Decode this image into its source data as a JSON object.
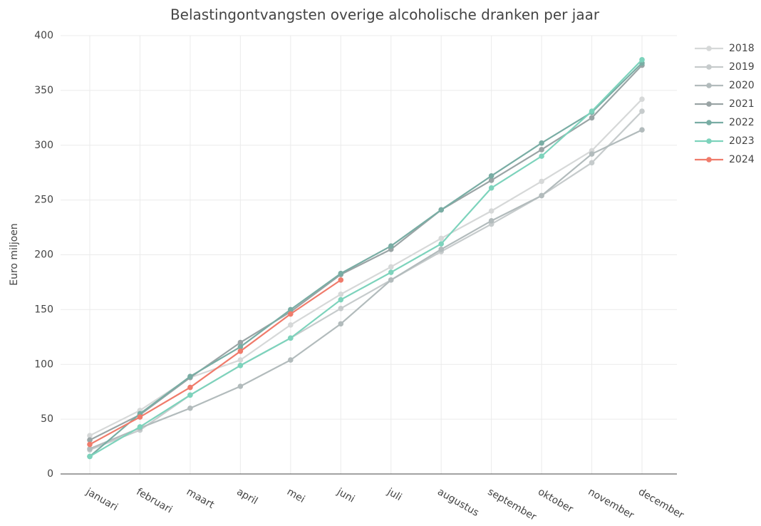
{
  "chart_data": {
    "type": "line",
    "title": "Belastingontvangsten overige alcoholische dranken per jaar",
    "y_label": "Euro miljoen",
    "categories": [
      "januari",
      "februari",
      "maart",
      "april",
      "mei",
      "juni",
      "juli",
      "augustus",
      "september",
      "oktober",
      "november",
      "december"
    ],
    "series": [
      {
        "name": "2018",
        "color": "#d6d8d8",
        "values": [
          35,
          58,
          88,
          104,
          136,
          164,
          189,
          215,
          240,
          267,
          295,
          342
        ]
      },
      {
        "name": "2019",
        "color": "#c6cbcc",
        "values": [
          22,
          40,
          72,
          99,
          124,
          151,
          177,
          203,
          228,
          254,
          284,
          331
        ]
      },
      {
        "name": "2020",
        "color": "#b2bbbc",
        "values": [
          23,
          42,
          60,
          80,
          104,
          137,
          177,
          205,
          231,
          254,
          292,
          314
        ]
      },
      {
        "name": "2021",
        "color": "#9aa4a5",
        "values": [
          31,
          54,
          88,
          120,
          148,
          182,
          205,
          241,
          268,
          296,
          325,
          373
        ]
      },
      {
        "name": "2022",
        "color": "#79ada4",
        "values": [
          16,
          55,
          89,
          116,
          150,
          183,
          208,
          241,
          272,
          302,
          330,
          375
        ]
      },
      {
        "name": "2023",
        "color": "#7dd3bc",
        "values": [
          16,
          43,
          72,
          99,
          124,
          159,
          184,
          210,
          261,
          290,
          331,
          378
        ]
      },
      {
        "name": "2024",
        "color": "#f07b6b",
        "values": [
          27,
          52,
          79,
          112,
          146,
          177,
          null,
          null,
          null,
          null,
          null,
          null
        ]
      }
    ],
    "ylim": [
      0,
      400
    ],
    "yticks": [
      0,
      50,
      100,
      150,
      200,
      250,
      300,
      350,
      400
    ],
    "grid": true,
    "legend": "top-right"
  }
}
